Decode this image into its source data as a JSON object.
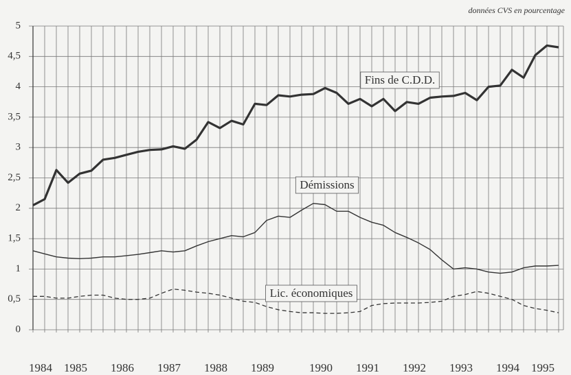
{
  "chart_data": {
    "type": "line",
    "subtitle": "données CVS en pourcentage",
    "categories": [
      null,
      "1984",
      null,
      null,
      "1985",
      null,
      null,
      null,
      "1986",
      null,
      null,
      null,
      "1987",
      null,
      null,
      null,
      "1988",
      null,
      null,
      null,
      "1989",
      null,
      null,
      null,
      null,
      "1990",
      null,
      null,
      null,
      "1991",
      null,
      null,
      null,
      "1992",
      null,
      null,
      null,
      "1993",
      null,
      null,
      null,
      "1994",
      null,
      null,
      "1995",
      null
    ],
    "series": [
      {
        "name": "Fins de C.D.D.",
        "color": "#333333",
        "width": 3.2,
        "dashed": false,
        "values": [
          2.05,
          2.15,
          2.63,
          2.42,
          2.57,
          2.62,
          2.8,
          2.83,
          2.88,
          2.93,
          2.96,
          2.97,
          3.02,
          2.98,
          3.13,
          3.42,
          3.32,
          3.44,
          3.38,
          3.72,
          3.7,
          3.86,
          3.84,
          3.87,
          3.88,
          3.98,
          3.9,
          3.72,
          3.8,
          3.68,
          3.8,
          3.6,
          3.75,
          3.72,
          3.82,
          3.84,
          3.85,
          3.9,
          3.78,
          4.0,
          4.02,
          4.28,
          4.15,
          4.52,
          4.68,
          4.65
        ]
      },
      {
        "name": "Démissions",
        "color": "#333333",
        "width": 1.4,
        "dashed": false,
        "values": [
          1.3,
          1.25,
          1.2,
          1.18,
          1.17,
          1.18,
          1.2,
          1.2,
          1.22,
          1.24,
          1.27,
          1.3,
          1.28,
          1.3,
          1.38,
          1.45,
          1.5,
          1.55,
          1.53,
          1.6,
          1.8,
          1.87,
          1.85,
          1.97,
          2.08,
          2.06,
          1.95,
          1.95,
          1.85,
          1.77,
          1.72,
          1.6,
          1.52,
          1.43,
          1.32,
          1.15,
          1.0,
          1.02,
          1.0,
          0.95,
          0.93,
          0.95,
          1.02,
          1.05,
          1.05,
          1.06
        ]
      },
      {
        "name": "Lic. économiques",
        "color": "#333333",
        "width": 1.3,
        "dashed": true,
        "values": [
          0.55,
          0.55,
          0.52,
          0.52,
          0.55,
          0.57,
          0.57,
          0.52,
          0.5,
          0.5,
          0.52,
          0.6,
          0.67,
          0.65,
          0.62,
          0.6,
          0.57,
          0.52,
          0.47,
          0.45,
          0.38,
          0.33,
          0.3,
          0.28,
          0.28,
          0.27,
          0.27,
          0.28,
          0.3,
          0.4,
          0.43,
          0.44,
          0.44,
          0.44,
          0.45,
          0.47,
          0.55,
          0.58,
          0.63,
          0.6,
          0.55,
          0.5,
          0.4,
          0.35,
          0.32,
          0.28
        ]
      }
    ],
    "ylim": [
      0,
      5
    ],
    "yticks": [
      0,
      {
        "value": 0.5,
        "label": "0,5"
      },
      1,
      {
        "value": 1.5,
        "label": "1,5"
      },
      2,
      {
        "value": 2.5,
        "label": "2,5"
      },
      3,
      {
        "value": 3.5,
        "label": "3,5"
      },
      4,
      {
        "value": 4.5,
        "label": "4,5"
      },
      5
    ],
    "grid": true
  }
}
